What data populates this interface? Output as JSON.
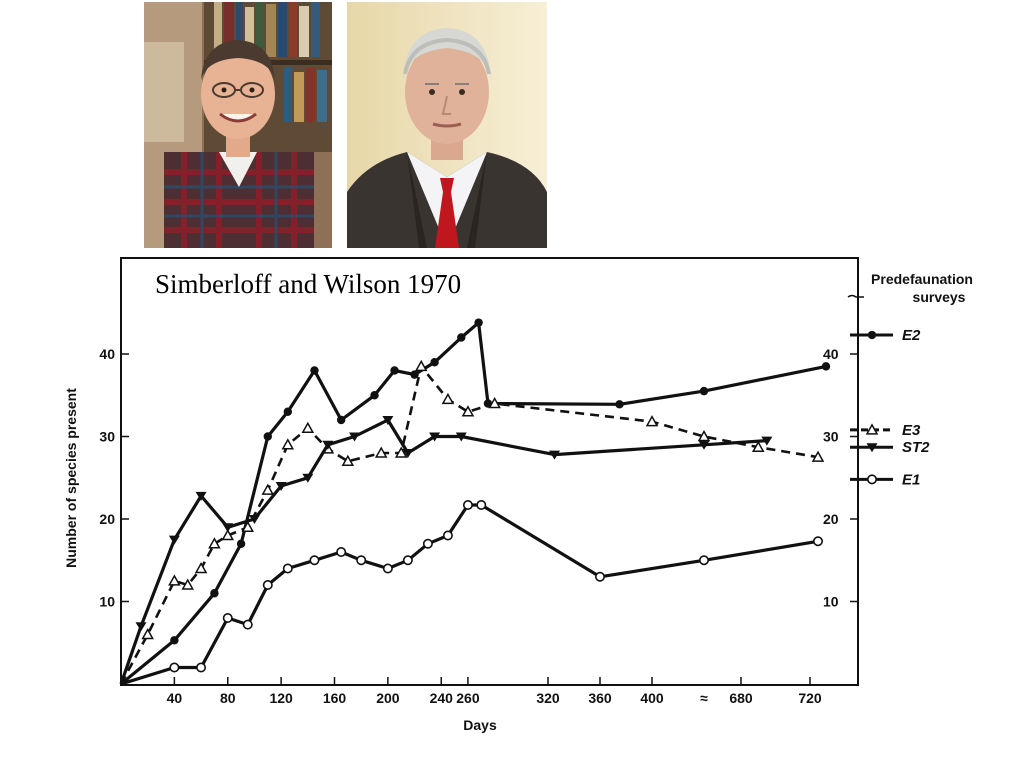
{
  "photos": [
    {
      "description": "Daniel Simberloff portrait, plaid shirt, bookshelves background"
    },
    {
      "description": "Edward O. Wilson portrait, suit and red tie"
    }
  ],
  "chart_data": {
    "type": "line",
    "title": "Simberloff and Wilson 1970",
    "xlabel": "Days",
    "ylabel": "Number of species present",
    "ylim": [
      0,
      50
    ],
    "x_ticks": [
      "40",
      "80",
      "120",
      "160",
      "200",
      "240",
      "260",
      "320",
      "360",
      "400",
      "680",
      "720"
    ],
    "y_ticks": [
      "10",
      "20",
      "30",
      "40"
    ],
    "right_y_ticks": [
      "10",
      "20",
      "30",
      "40"
    ],
    "axis_break": "≈",
    "legend_header": [
      "Predefaunation",
      "surveys"
    ],
    "series": [
      {
        "name": "E2",
        "line": "solid",
        "marker": "filled-circle",
        "x": [
          0,
          40,
          70,
          90,
          110,
          125,
          145,
          165,
          190,
          205,
          220,
          235,
          255,
          268,
          275,
          375,
          440,
          730
        ],
        "y": [
          0,
          5.3,
          11,
          17,
          30,
          33,
          38,
          32,
          35,
          38,
          37.5,
          39,
          42,
          43.8,
          34,
          33.9,
          35.5,
          38.5
        ],
        "predefaunation": 42.3
      },
      {
        "name": "E3",
        "line": "dashed",
        "marker": "open-triangle",
        "x": [
          0,
          20,
          40,
          50,
          60,
          70,
          80,
          95,
          110,
          125,
          140,
          155,
          170,
          195,
          210,
          225,
          245,
          260,
          280,
          400,
          440,
          690,
          725
        ],
        "y": [
          0,
          6,
          12.5,
          12,
          14,
          17,
          18,
          19,
          23.5,
          29,
          31,
          28.5,
          27,
          28,
          28,
          38.5,
          34.5,
          33,
          34,
          31.8,
          30,
          28.7,
          27.5
        ],
        "predefaunation": 30.8
      },
      {
        "name": "ST2",
        "line": "solid",
        "marker": "filled-triangle",
        "x": [
          0,
          15,
          40,
          60,
          80,
          100,
          120,
          140,
          155,
          175,
          200,
          215,
          235,
          255,
          325,
          440,
          695
        ],
        "y": [
          0,
          7,
          17.5,
          22.8,
          19,
          20,
          24,
          25,
          29,
          30,
          32,
          28,
          30,
          30,
          27.8,
          29,
          29.5
        ],
        "predefaunation": 28.7
      },
      {
        "name": "E1",
        "line": "solid",
        "marker": "open-circle",
        "x": [
          0,
          40,
          60,
          80,
          95,
          110,
          125,
          145,
          165,
          180,
          200,
          215,
          230,
          245,
          260,
          270,
          360,
          440,
          725
        ],
        "y": [
          0,
          2,
          2,
          8,
          7.2,
          12,
          14,
          15,
          16,
          15,
          14,
          15,
          17,
          18,
          21.7,
          21.7,
          13,
          15,
          17.3
        ],
        "predefaunation": 24.8
      }
    ]
  }
}
